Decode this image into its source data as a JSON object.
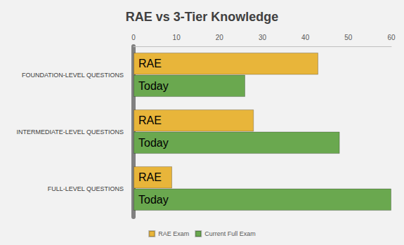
{
  "chart_data": {
    "type": "bar",
    "title": "RAE vs 3-Tier Knowledge",
    "orientation": "horizontal",
    "categories": [
      "FOUNDATION-LEVEL QUESTIONS",
      "INTERMEDIATE-LEVEL QUESTIONS",
      "FULL-LEVEL QUESTIONS"
    ],
    "series": [
      {
        "name": "RAE Exam",
        "label": "RAE",
        "color": "#e8b53a",
        "values": [
          43,
          28,
          9
        ]
      },
      {
        "name": "Current Full Exam",
        "label": "Today",
        "color": "#6aa84f",
        "values": [
          26,
          48,
          60
        ]
      }
    ],
    "xlim": [
      0,
      60
    ],
    "xticks": [
      0,
      10,
      20,
      30,
      40,
      50,
      60
    ],
    "grid": false,
    "legend": "bottom"
  }
}
